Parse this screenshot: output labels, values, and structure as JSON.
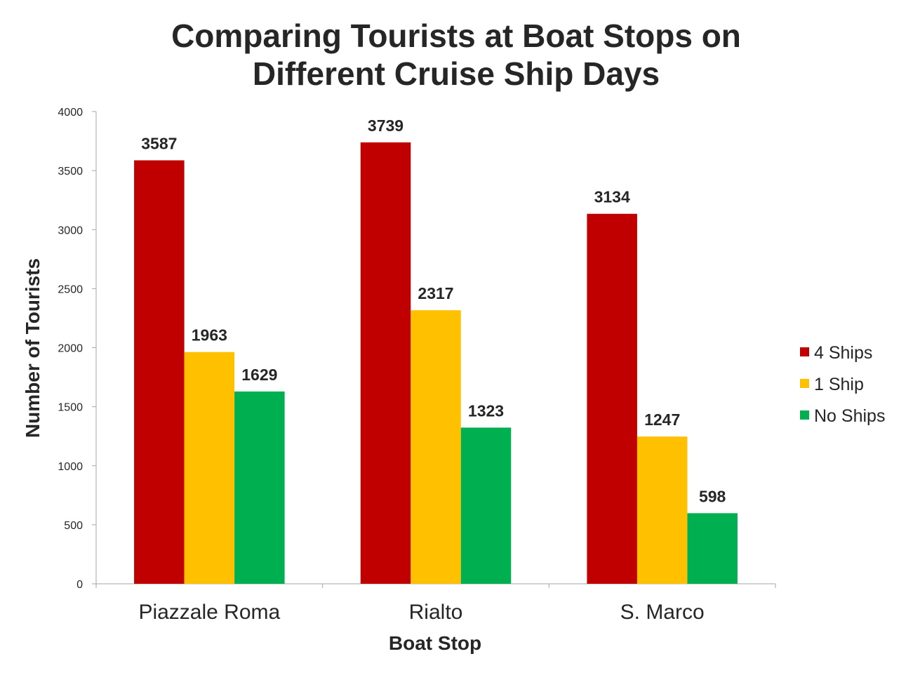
{
  "chart_data": {
    "type": "bar",
    "title": [
      "Comparing Tourists at Boat Stops on",
      "Different Cruise Ship Days"
    ],
    "xlabel": "Boat Stop",
    "ylabel": "Number of Tourists",
    "categories": [
      "Piazzale Roma",
      "Rialto",
      "S. Marco"
    ],
    "ylim": [
      0,
      4000
    ],
    "yticks": [
      0,
      500,
      1000,
      1500,
      2000,
      2500,
      3000,
      3500,
      4000
    ],
    "grid": false,
    "legend_position": "right",
    "data_labels": true,
    "series": [
      {
        "name": "4 Ships",
        "color": "#c00000",
        "values": [
          3587,
          3739,
          3134
        ]
      },
      {
        "name": "1 Ship",
        "color": "#ffc000",
        "values": [
          1963,
          2317,
          1247
        ]
      },
      {
        "name": "No Ships",
        "color": "#00b050",
        "values": [
          1629,
          1323,
          598
        ]
      }
    ]
  }
}
